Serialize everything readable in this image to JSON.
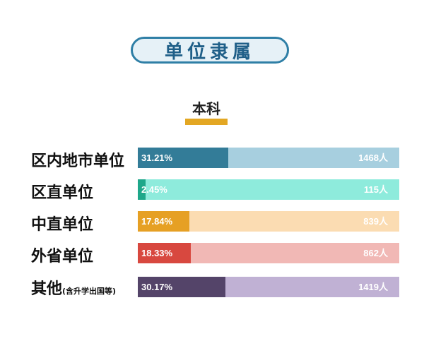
{
  "header": {
    "title": "单位隶属"
  },
  "subtitle": "本科",
  "chart_data": {
    "type": "bar",
    "orientation": "horizontal",
    "title": "单位隶属",
    "subtitle": "本科",
    "categories": [
      "区内地市单位",
      "区直单位",
      "中直单位",
      "外省单位",
      "其他"
    ],
    "category_notes": [
      "",
      "",
      "",
      "",
      "(含升学出国等)"
    ],
    "percent_labels": [
      "31.21%",
      "2.45%",
      "17.84%",
      "18.33%",
      "30.17%"
    ],
    "percents": [
      31.21,
      2.45,
      17.84,
      18.33,
      30.17
    ],
    "count_labels": [
      "1468人",
      "115人",
      "839人",
      "862人",
      "1419人"
    ],
    "counts": [
      1468,
      115,
      839,
      862,
      1419
    ],
    "xlim": [
      0,
      90
    ],
    "colors": {
      "fill": [
        "#337c98",
        "#1ea78a",
        "#e6a024",
        "#d8483f",
        "#544469"
      ],
      "track": [
        "#a7cfdf",
        "#8eebdc",
        "#fbdcb2",
        "#f1b8b5",
        "#c0b1d4"
      ]
    }
  }
}
